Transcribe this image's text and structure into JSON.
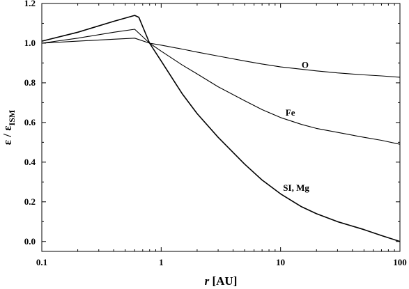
{
  "chart_data": {
    "type": "line",
    "xscale": "log",
    "xlim": [
      0.1,
      100
    ],
    "ylim": [
      -0.05,
      1.2
    ],
    "grid": false,
    "xlabel": {
      "italic": "r",
      "rest": " [AU]"
    },
    "ylabel": {
      "base": "ε / ε",
      "sub": "ISM"
    },
    "xticks": [
      {
        "value": 0.1,
        "label": "0.1"
      },
      {
        "value": 1,
        "label": "1"
      },
      {
        "value": 10,
        "label": "10"
      },
      {
        "value": 100,
        "label": "100"
      }
    ],
    "yticks": [
      {
        "value": 0.0,
        "label": "0.0"
      },
      {
        "value": 0.2,
        "label": "0.2"
      },
      {
        "value": 0.4,
        "label": "0.4"
      },
      {
        "value": 0.6,
        "label": "0.6"
      },
      {
        "value": 0.8,
        "label": "0.8"
      },
      {
        "value": 1.0,
        "label": "1.0"
      },
      {
        "value": 1.2,
        "label": "1.2"
      }
    ],
    "series": [
      {
        "name": "O",
        "label_at": [
          15,
          0.875
        ],
        "x": [
          0.1,
          0.2,
          0.4,
          0.6,
          0.8,
          1.0,
          1.5,
          2,
          3,
          5,
          7,
          10,
          20,
          30,
          50,
          70,
          100
        ],
        "y": [
          1.0,
          1.01,
          1.02,
          1.025,
          1.0,
          0.99,
          0.97,
          0.955,
          0.935,
          0.91,
          0.895,
          0.88,
          0.86,
          0.85,
          0.84,
          0.835,
          0.828
        ]
      },
      {
        "name": "Fe",
        "label_at": [
          11,
          0.635
        ],
        "x": [
          0.1,
          0.2,
          0.4,
          0.6,
          0.8,
          1.0,
          1.5,
          2,
          3,
          5,
          7,
          10,
          15,
          20,
          30,
          50,
          70,
          100
        ],
        "y": [
          1.0,
          1.025,
          1.055,
          1.07,
          1.0,
          0.96,
          0.89,
          0.845,
          0.78,
          0.71,
          0.665,
          0.625,
          0.59,
          0.57,
          0.55,
          0.525,
          0.51,
          0.49
        ]
      },
      {
        "name": "SI, Mg",
        "label_at": [
          10.5,
          0.255
        ],
        "x": [
          0.1,
          0.2,
          0.4,
          0.6,
          0.65,
          0.8,
          1.0,
          1.5,
          2,
          3,
          5,
          7,
          10,
          15,
          20,
          30,
          50,
          70,
          100
        ],
        "y": [
          1.01,
          1.055,
          1.11,
          1.14,
          1.13,
          1.0,
          0.91,
          0.745,
          0.645,
          0.525,
          0.39,
          0.31,
          0.24,
          0.175,
          0.14,
          0.1,
          0.06,
          0.03,
          0.0
        ]
      }
    ]
  }
}
